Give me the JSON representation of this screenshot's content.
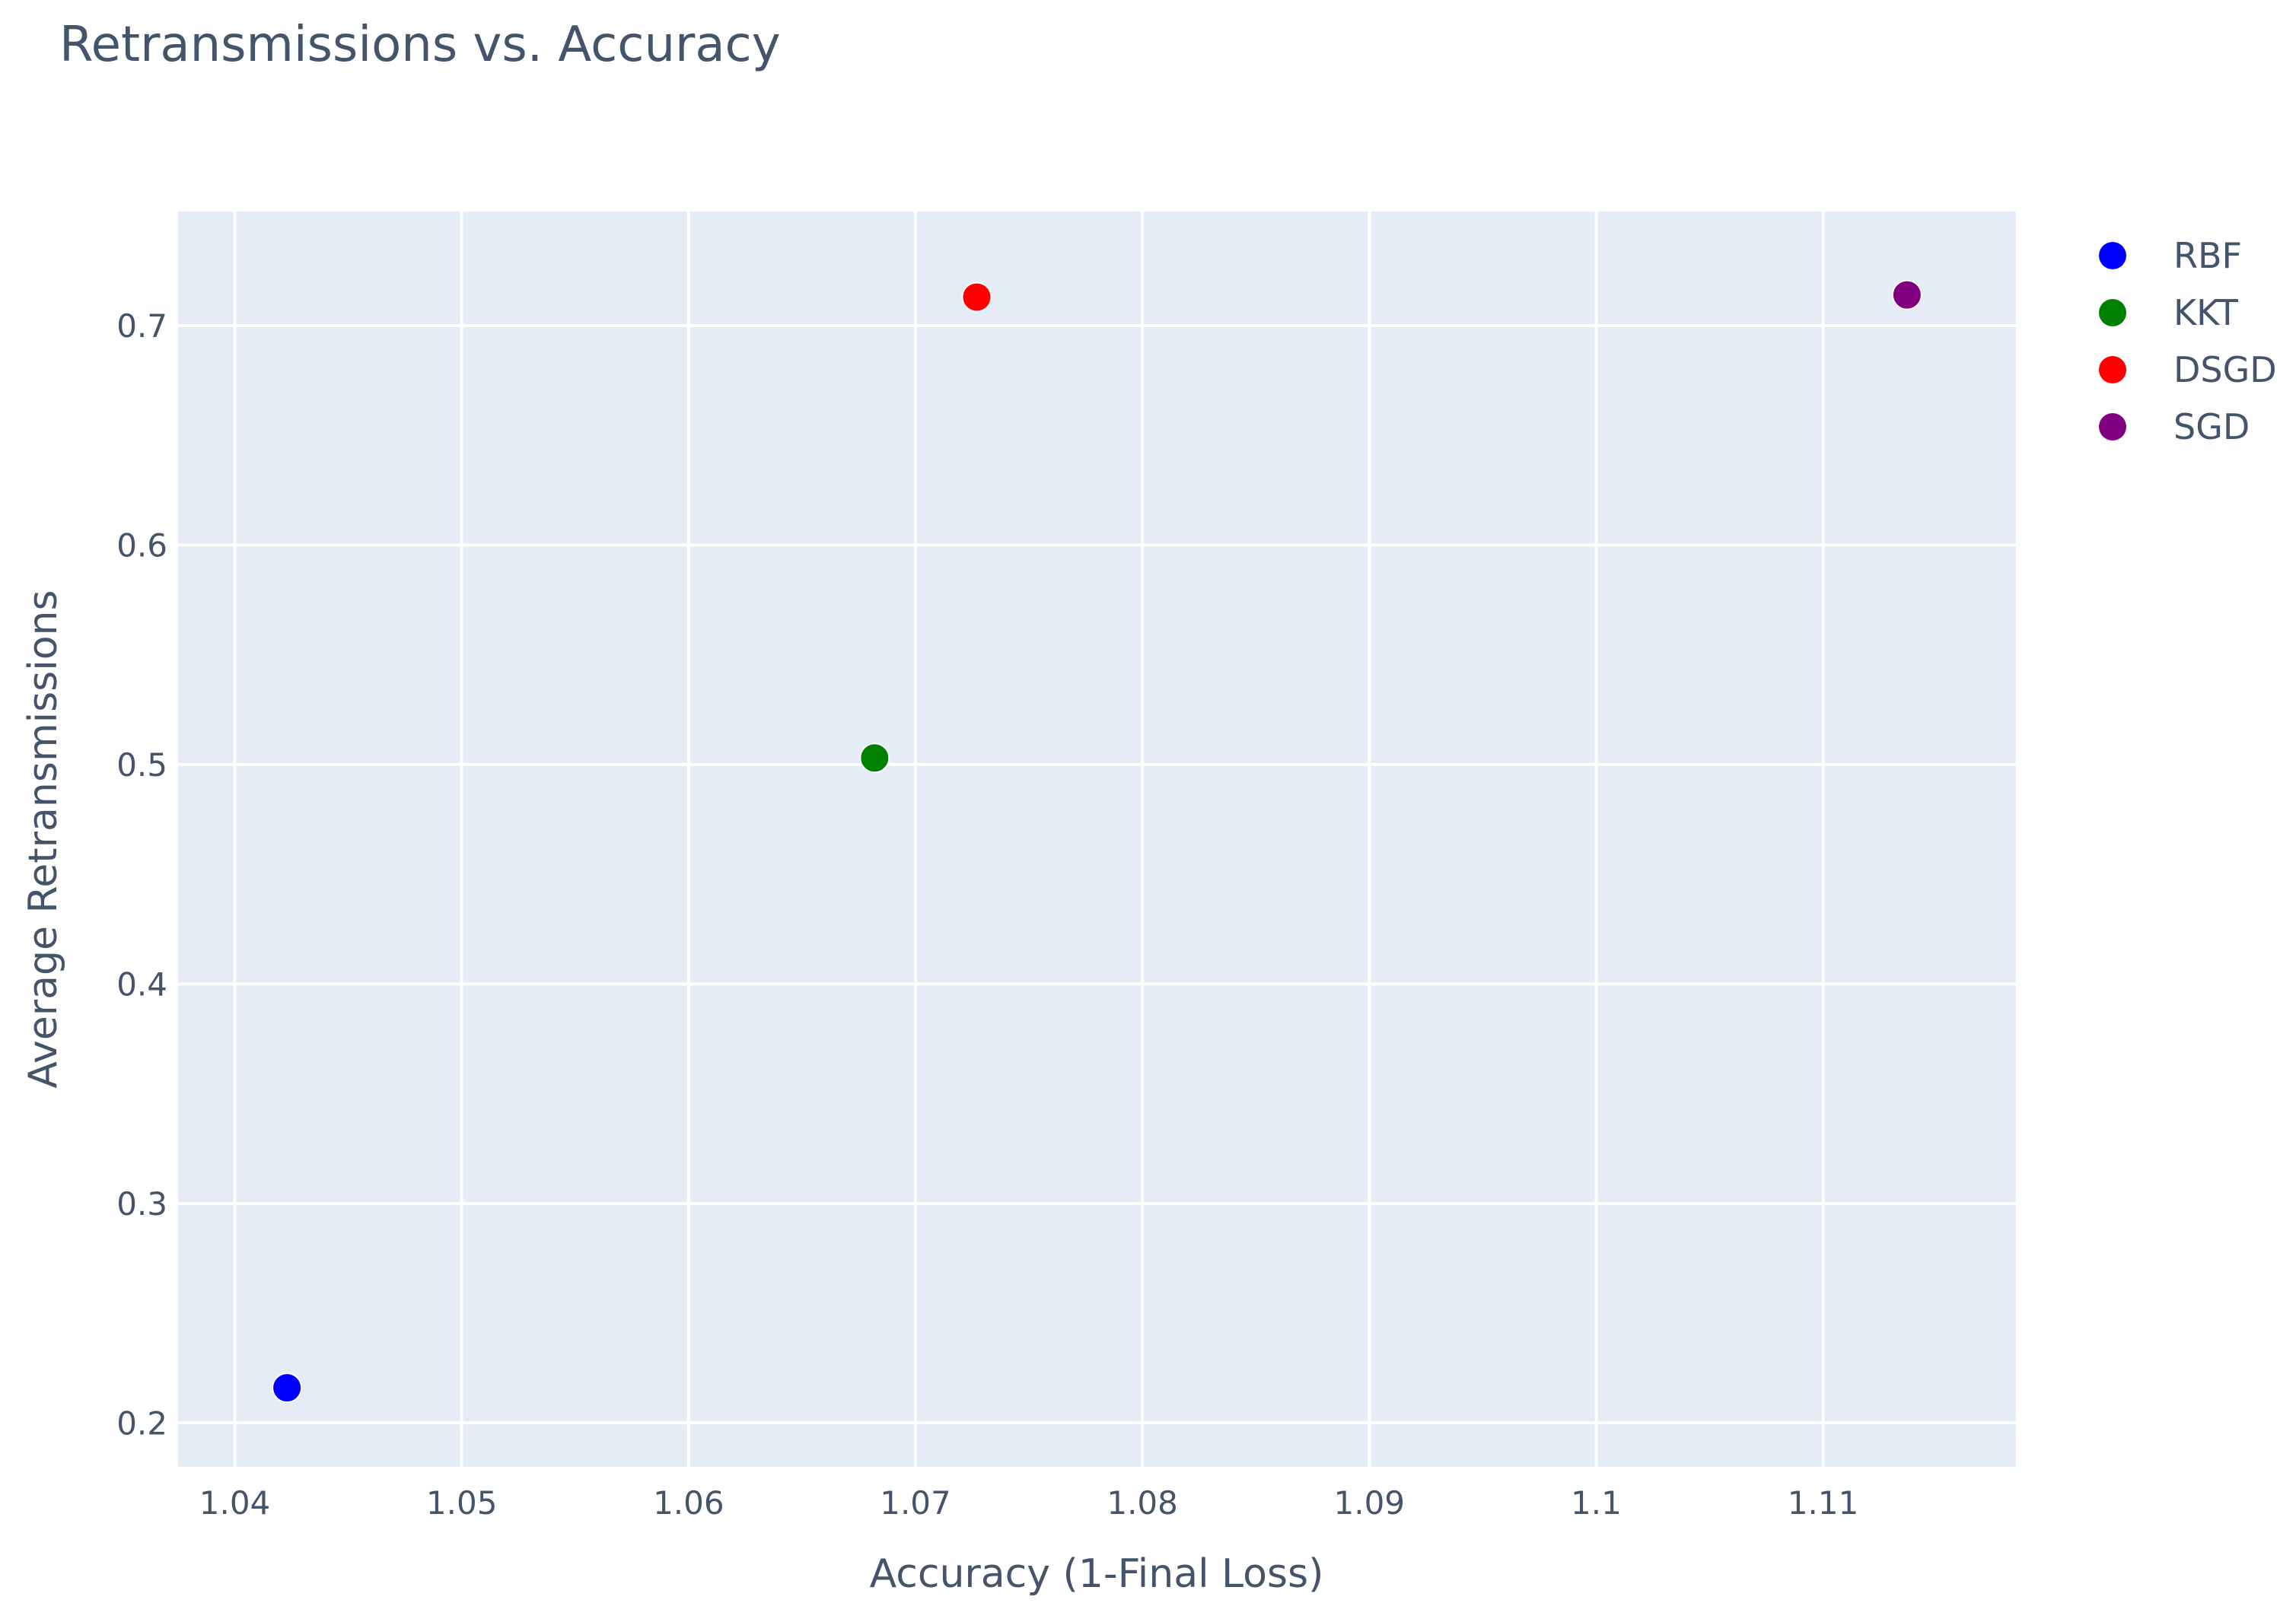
{
  "chart_data": {
    "type": "scatter",
    "title": "Retransmissions vs. Accuracy",
    "xlabel": "Accuracy (1-Final Loss)",
    "ylabel": "Average Retransmissions",
    "xlim": [
      1.0375,
      1.1185
    ],
    "ylim": [
      0.18,
      0.752
    ],
    "xticks": [
      1.04,
      1.05,
      1.06,
      1.07,
      1.08,
      1.09,
      1.1,
      1.11
    ],
    "xtick_labels": [
      "1.04",
      "1.05",
      "1.06",
      "1.07",
      "1.08",
      "1.09",
      "1.1",
      "1.11"
    ],
    "yticks": [
      0.2,
      0.3,
      0.4,
      0.5,
      0.6,
      0.7
    ],
    "ytick_labels": [
      "0.2",
      "0.3",
      "0.4",
      "0.5",
      "0.6",
      "0.7"
    ],
    "grid": true,
    "background": "#e5ecf6",
    "legend_position": "top-right",
    "series": [
      {
        "name": "RBF",
        "color": "#0000ff",
        "x": [
          1.0423
        ],
        "y": [
          0.216
        ]
      },
      {
        "name": "KKT",
        "color": "#008000",
        "x": [
          1.0682
        ],
        "y": [
          0.503
        ]
      },
      {
        "name": "DSGD",
        "color": "#ff0000",
        "x": [
          1.0727
        ],
        "y": [
          0.713
        ]
      },
      {
        "name": "SGD",
        "color": "#800080",
        "x": [
          1.1137
        ],
        "y": [
          0.714
        ]
      }
    ]
  }
}
